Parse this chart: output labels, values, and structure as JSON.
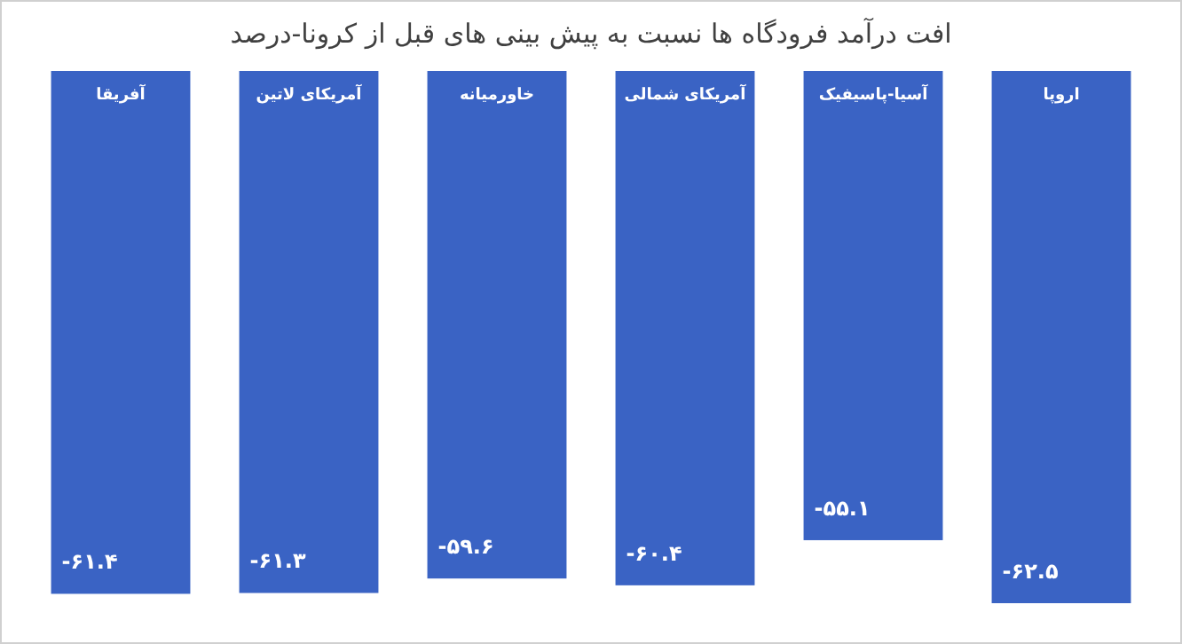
{
  "chart_data": {
    "type": "bar",
    "title": "افت درآمد فرودگاه ها نسبت به پیش بینی  های قبل  از کرونا-درصد",
    "categories": [
      "آفریقا",
      "آمریکای لاتین",
      "خاورمیانه",
      "آمریکای شمالی",
      "آسیا-پاسیفیک",
      "اروپا"
    ],
    "values": [
      -61.4,
      -61.3,
      -59.6,
      -60.4,
      -55.1,
      -62.5
    ],
    "value_labels": [
      "-۶۱.۴",
      "-۶۱.۳",
      "-۵۹.۶",
      "-۶۰.۴",
      "-۵۵.۱",
      "-۶۲.۵"
    ],
    "color": "#3a63c4"
  }
}
